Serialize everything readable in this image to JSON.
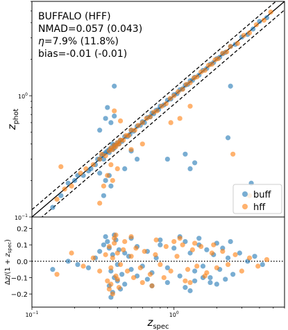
{
  "chart_data": [
    {
      "type": "scatter",
      "panel": "main",
      "xscale": "log",
      "yscale": "log",
      "xlim": [
        0.1,
        6.0
      ],
      "ylim": [
        0.1,
        6.0
      ],
      "xlabel": "",
      "ylabel": "z_phot",
      "yticks": [
        {
          "value": 0.1,
          "base": "10",
          "exp": "−1"
        },
        {
          "value": 1,
          "base": "10",
          "exp": "0"
        }
      ],
      "stats_text": [
        "BUFFALO (HFF)",
        "NMAD=0.057 (0.043)",
        "=7.9% (11.8%)",
        "bias=-0.01 (-0.01)"
      ],
      "stats_eta_symbol": "η",
      "reference_lines": [
        {
          "kind": "one-to-one",
          "style": "solid"
        },
        {
          "kind": "outlier-bound",
          "factor": 1.15,
          "style": "dashed"
        },
        {
          "kind": "outlier-bound",
          "factor": 0.85,
          "style": "dashed"
        }
      ],
      "legend": {
        "placement": "lower-right",
        "entries": [
          "buff",
          "hff"
        ]
      },
      "series": [
        {
          "name": "buff",
          "color": "#1f77b4",
          "x": [
            0.14,
            0.16,
            0.18,
            0.2,
            0.21,
            0.23,
            0.25,
            0.26,
            0.28,
            0.29,
            0.3,
            0.31,
            0.32,
            0.33,
            0.34,
            0.35,
            0.35,
            0.36,
            0.37,
            0.37,
            0.38,
            0.38,
            0.39,
            0.4,
            0.41,
            0.42,
            0.43,
            0.45,
            0.47,
            0.49,
            0.5,
            0.52,
            0.55,
            0.58,
            0.6,
            0.62,
            0.65,
            0.68,
            0.7,
            0.72,
            0.75,
            0.78,
            0.8,
            0.85,
            0.9,
            0.95,
            1.0,
            1.05,
            1.1,
            1.15,
            1.2,
            1.25,
            1.3,
            1.35,
            1.4,
            1.5,
            1.6,
            1.7,
            1.8,
            1.9,
            2.0,
            2.1,
            2.2,
            2.3,
            2.5,
            2.7,
            3.0,
            3.3,
            3.6,
            4.0,
            4.5,
            0.33,
            0.34,
            0.36,
            0.38,
            0.3,
            0.32,
            0.35,
            0.36,
            0.33,
            0.45,
            0.5,
            0.55,
            0.38,
            0.9,
            1.2,
            1.3,
            1.4,
            2.4,
            3.5,
            2.5,
            0.32,
            0.3
          ],
          "y": [
            0.12,
            0.15,
            0.19,
            0.2,
            0.22,
            0.22,
            0.24,
            0.25,
            0.27,
            0.3,
            0.3,
            0.32,
            0.33,
            0.34,
            0.35,
            0.34,
            0.36,
            0.37,
            0.36,
            0.4,
            0.37,
            0.39,
            0.39,
            0.41,
            0.4,
            0.43,
            0.42,
            0.46,
            0.46,
            0.48,
            0.52,
            0.51,
            0.56,
            0.57,
            0.61,
            0.6,
            0.66,
            0.67,
            0.72,
            0.71,
            0.76,
            0.77,
            0.82,
            0.84,
            0.92,
            0.94,
            1.02,
            1.04,
            1.12,
            1.14,
            1.22,
            1.24,
            1.33,
            1.34,
            1.42,
            1.48,
            1.62,
            1.68,
            1.82,
            1.88,
            2.02,
            2.08,
            2.22,
            2.28,
            2.55,
            2.65,
            3.05,
            3.2,
            3.55,
            4.1,
            4.4,
            0.65,
            0.8,
            0.6,
            0.68,
            0.52,
            0.15,
            0.22,
            0.18,
            0.2,
            0.25,
            0.35,
            0.3,
            1.2,
            0.3,
            0.33,
            0.25,
            0.28,
            0.45,
            0.19,
            1.2,
            0.3,
            0.23
          ]
        },
        {
          "name": "hff",
          "color": "#ff7f0e",
          "x": [
            0.15,
            0.17,
            0.19,
            0.22,
            0.24,
            0.27,
            0.3,
            0.31,
            0.33,
            0.35,
            0.36,
            0.37,
            0.38,
            0.39,
            0.4,
            0.41,
            0.42,
            0.44,
            0.46,
            0.48,
            0.5,
            0.53,
            0.56,
            0.6,
            0.64,
            0.68,
            0.72,
            0.76,
            0.82,
            0.88,
            0.94,
            1.0,
            1.07,
            1.15,
            1.22,
            1.3,
            1.38,
            1.45,
            1.55,
            1.65,
            1.75,
            1.85,
            1.95,
            2.05,
            2.2,
            2.35,
            2.5,
            2.8,
            3.1,
            3.4,
            3.8,
            4.3,
            4.8,
            0.34,
            0.37,
            0.4,
            0.36,
            0.32,
            0.38,
            0.42,
            0.5,
            0.6,
            0.95,
            1.1,
            1.3,
            2.6,
            3.4,
            0.16,
            0.3
          ],
          "y": [
            0.14,
            0.17,
            0.18,
            0.23,
            0.25,
            0.27,
            0.3,
            0.33,
            0.32,
            0.35,
            0.37,
            0.36,
            0.39,
            0.38,
            0.41,
            0.4,
            0.43,
            0.43,
            0.47,
            0.47,
            0.52,
            0.52,
            0.57,
            0.6,
            0.65,
            0.67,
            0.73,
            0.75,
            0.82,
            0.86,
            0.95,
            1.0,
            1.08,
            1.13,
            1.24,
            1.28,
            1.4,
            1.43,
            1.57,
            1.62,
            1.78,
            1.82,
            1.98,
            2.02,
            2.24,
            2.3,
            2.55,
            2.7,
            3.15,
            3.3,
            3.85,
            4.2,
            4.9,
            0.22,
            0.2,
            0.25,
            0.27,
            0.18,
            0.75,
            0.62,
            0.36,
            0.4,
            0.6,
            0.65,
            0.82,
            0.33,
            0.15,
            0.26,
            0.13
          ]
        }
      ]
    },
    {
      "type": "scatter",
      "panel": "residual",
      "xscale": "log",
      "xlim": [
        0.1,
        6.0
      ],
      "ylim": [
        -0.28,
        0.27
      ],
      "xlabel": "z_spec",
      "ylabel": "Δz/(1 + z_spec)",
      "xticks": [
        {
          "value": 0.1,
          "base": "10",
          "exp": "−1"
        },
        {
          "value": 1,
          "base": "10",
          "exp": "0"
        }
      ],
      "yticks": [
        -0.2,
        -0.1,
        0.0,
        0.1,
        0.2
      ],
      "ytick_labels": [
        "−0.2",
        "−0.1",
        "0.0",
        "0.1",
        "0.2"
      ],
      "reference_lines": [
        {
          "kind": "zero",
          "style": "dotted"
        }
      ],
      "series": [
        {
          "name": "buff",
          "color": "#1f77b4",
          "x": [
            0.14,
            0.18,
            0.21,
            0.25,
            0.28,
            0.3,
            0.32,
            0.34,
            0.35,
            0.36,
            0.37,
            0.38,
            0.39,
            0.4,
            0.41,
            0.43,
            0.45,
            0.48,
            0.5,
            0.55,
            0.6,
            0.65,
            0.7,
            0.75,
            0.8,
            0.9,
            1.0,
            1.1,
            1.2,
            1.3,
            1.4,
            1.5,
            1.6,
            1.7,
            1.8,
            1.9,
            2.0,
            2.1,
            2.2,
            2.4,
            2.6,
            2.9,
            3.3,
            3.7,
            4.2,
            0.35,
            0.37,
            0.4,
            0.45,
            0.55,
            0.65,
            0.9,
            1.2,
            1.4,
            1.6,
            2.0,
            2.3,
            0.33,
            0.38,
            0.5,
            0.8,
            1.1,
            1.5,
            2.5,
            0.36,
            0.42,
            0.7,
            1.3,
            1.8
          ],
          "y": [
            -0.05,
            0.0,
            -0.02,
            -0.04,
            0.02,
            0.06,
            0.1,
            0.12,
            0.08,
            -0.06,
            0.04,
            -0.1,
            0.13,
            -0.02,
            0.07,
            -0.08,
            0.05,
            0.03,
            -0.05,
            0.09,
            -0.03,
            0.06,
            -0.07,
            0.02,
            0.1,
            -0.04,
            0.08,
            -0.09,
            0.12,
            0.05,
            -0.06,
            0.1,
            -0.03,
            0.07,
            -0.1,
            0.04,
            0.11,
            -0.05,
            0.08,
            0.02,
            -0.08,
            0.05,
            0.0,
            0.03,
            -0.02,
            -0.15,
            -0.19,
            -0.12,
            -0.14,
            -0.09,
            -0.11,
            -0.13,
            -0.16,
            -0.12,
            -0.1,
            -0.14,
            -0.11,
            0.15,
            0.16,
            0.14,
            0.13,
            0.15,
            0.14,
            0.12,
            -0.22,
            -0.17,
            -0.15,
            -0.18,
            -0.13
          ]
        },
        {
          "name": "hff",
          "color": "#ff7f0e",
          "x": [
            0.15,
            0.19,
            0.23,
            0.27,
            0.3,
            0.33,
            0.35,
            0.36,
            0.37,
            0.38,
            0.39,
            0.4,
            0.42,
            0.44,
            0.47,
            0.5,
            0.54,
            0.58,
            0.62,
            0.68,
            0.74,
            0.8,
            0.88,
            0.95,
            1.05,
            1.15,
            1.25,
            1.35,
            1.45,
            1.55,
            1.7,
            1.85,
            2.0,
            2.2,
            2.4,
            2.7,
            3.0,
            3.4,
            3.9,
            4.5,
            0.34,
            0.36,
            0.38,
            0.4,
            0.45,
            0.52,
            0.6,
            0.75,
            0.85,
            1.0,
            1.2,
            1.4,
            1.65,
            1.9,
            0.37,
            0.41,
            0.5,
            0.7,
            1.1,
            1.3,
            0.35,
            0.39
          ],
          "y": [
            -0.08,
            0.05,
            -0.03,
            0.02,
            -0.06,
            0.04,
            0.09,
            -0.04,
            0.02,
            0.11,
            -0.09,
            0.05,
            -0.02,
            0.07,
            -0.06,
            0.03,
            0.08,
            -0.04,
            0.06,
            -0.08,
            0.04,
            -0.02,
            0.09,
            -0.06,
            0.03,
            0.1,
            -0.05,
            0.07,
            -0.03,
            0.09,
            -0.07,
            0.05,
            -0.04,
            0.06,
            -0.02,
            0.04,
            -0.06,
            0.02,
            -0.03,
            0.01,
            -0.12,
            -0.14,
            0.14,
            -0.11,
            0.12,
            -0.1,
            -0.13,
            0.13,
            -0.1,
            0.12,
            -0.12,
            0.11,
            -0.09,
            0.1,
            -0.2,
            -0.16,
            0.15,
            -0.15,
            0.14,
            -0.13,
            -0.17,
            0.16
          ]
        }
      ]
    }
  ]
}
